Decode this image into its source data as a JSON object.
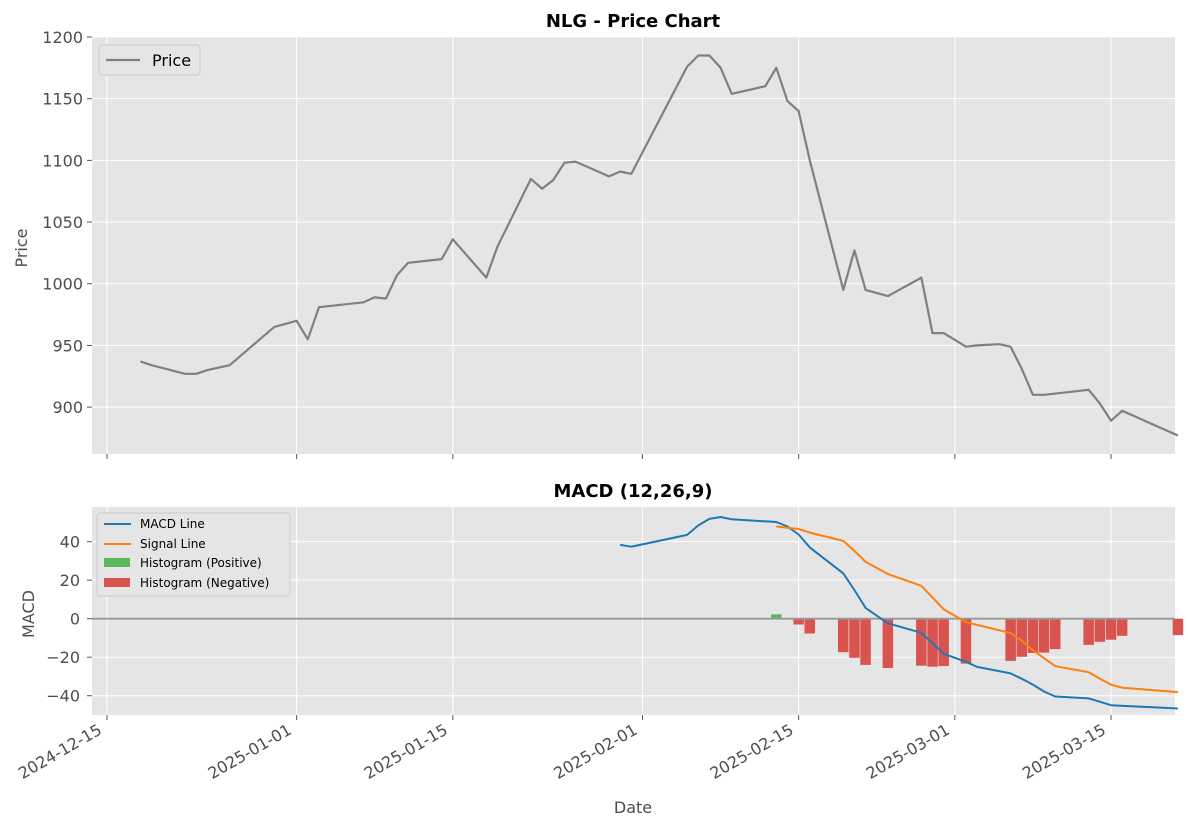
{
  "chart_data": [
    {
      "type": "line",
      "title": "NLG - Price Chart",
      "xlabel": "",
      "ylabel": "Price",
      "ylim": [
        862,
        1200
      ],
      "yticks": [
        "900",
        "950",
        "1000",
        "1050",
        "1100",
        "1150",
        "1200"
      ],
      "xticks": [
        "2024-12-15",
        "2025-01-01",
        "2025-01-15",
        "2025-02-01",
        "2025-02-15",
        "2025-03-01",
        "2025-03-15"
      ],
      "grid": true,
      "legend": "top-left",
      "series": [
        {
          "name": "Price",
          "color": "#808080",
          "points": [
            [
              "2024-12-18",
              937
            ],
            [
              "2024-12-19",
              934
            ],
            [
              "2024-12-22",
              927
            ],
            [
              "2024-12-23",
              927
            ],
            [
              "2024-12-24",
              930
            ],
            [
              "2024-12-26",
              934
            ],
            [
              "2024-12-30",
              965
            ],
            [
              "2025-01-01",
              970
            ],
            [
              "2025-01-02",
              955
            ],
            [
              "2025-01-03",
              981
            ],
            [
              "2025-01-07",
              985
            ],
            [
              "2025-01-08",
              989
            ],
            [
              "2025-01-09",
              988
            ],
            [
              "2025-01-10",
              1007
            ],
            [
              "2025-01-11",
              1017
            ],
            [
              "2025-01-14",
              1020
            ],
            [
              "2025-01-15",
              1036
            ],
            [
              "2025-01-18",
              1005
            ],
            [
              "2025-01-19",
              1030
            ],
            [
              "2025-01-22",
              1085
            ],
            [
              "2025-01-23",
              1077
            ],
            [
              "2025-01-24",
              1084
            ],
            [
              "2025-01-25",
              1098
            ],
            [
              "2025-01-26",
              1099
            ],
            [
              "2025-01-29",
              1087
            ],
            [
              "2025-01-30",
              1091
            ],
            [
              "2025-01-31",
              1089
            ],
            [
              "2025-02-05",
              1176
            ],
            [
              "2025-02-06",
              1185
            ],
            [
              "2025-02-07",
              1185
            ],
            [
              "2025-02-08",
              1175
            ],
            [
              "2025-02-09",
              1154
            ],
            [
              "2025-02-12",
              1160
            ],
            [
              "2025-02-13",
              1175
            ],
            [
              "2025-02-14",
              1148
            ],
            [
              "2025-02-15",
              1140
            ],
            [
              "2025-02-16",
              1100
            ],
            [
              "2025-02-19",
              995
            ],
            [
              "2025-02-20",
              1027
            ],
            [
              "2025-02-21",
              995
            ],
            [
              "2025-02-23",
              990
            ],
            [
              "2025-02-26",
              1005
            ],
            [
              "2025-02-27",
              960
            ],
            [
              "2025-02-28",
              960
            ],
            [
              "2025-03-02",
              949
            ],
            [
              "2025-03-03",
              950
            ],
            [
              "2025-03-05",
              951
            ],
            [
              "2025-03-06",
              949
            ],
            [
              "2025-03-07",
              931
            ],
            [
              "2025-03-08",
              910
            ],
            [
              "2025-03-09",
              910
            ],
            [
              "2025-03-13",
              914
            ],
            [
              "2025-03-14",
              903
            ],
            [
              "2025-03-15",
              889
            ],
            [
              "2025-03-16",
              897
            ],
            [
              "2025-03-21",
              877
            ]
          ]
        }
      ]
    },
    {
      "type": "line",
      "title": "MACD (12,26,9)",
      "xlabel": "Date",
      "ylabel": "MACD",
      "ylim": [
        -50,
        58
      ],
      "yticks": [
        "−40",
        "−20",
        "0",
        "20",
        "40"
      ],
      "xticks": [
        "2024-12-15",
        "2025-01-01",
        "2025-01-15",
        "2025-02-01",
        "2025-02-15",
        "2025-03-01",
        "2025-03-15"
      ],
      "grid": true,
      "legend": "top-left",
      "series": [
        {
          "name": "MACD Line",
          "color": "#1f77b4",
          "points": [
            [
              "2025-01-30",
              38.3
            ],
            [
              "2025-01-31",
              37.4
            ],
            [
              "2025-02-05",
              43.5
            ],
            [
              "2025-02-06",
              48.4
            ],
            [
              "2025-02-07",
              51.8
            ],
            [
              "2025-02-08",
              52.8
            ],
            [
              "2025-02-09",
              51.6
            ],
            [
              "2025-02-13",
              50.2
            ],
            [
              "2025-02-14",
              47.9
            ],
            [
              "2025-02-15",
              43.7
            ],
            [
              "2025-02-16",
              37.0
            ],
            [
              "2025-02-19",
              23.5
            ],
            [
              "2025-02-20",
              14.9
            ],
            [
              "2025-02-21",
              5.6
            ],
            [
              "2025-02-23",
              -2.4
            ],
            [
              "2025-02-26",
              -7.3
            ],
            [
              "2025-02-27",
              -12.7
            ],
            [
              "2025-02-28",
              -18.2
            ],
            [
              "2025-03-02",
              -22.4
            ],
            [
              "2025-03-03",
              -25.0
            ],
            [
              "2025-03-06",
              -28.4
            ],
            [
              "2025-03-07",
              -31.2
            ],
            [
              "2025-03-08",
              -34.2
            ],
            [
              "2025-03-09",
              -37.8
            ],
            [
              "2025-03-10",
              -40.4
            ],
            [
              "2025-03-13",
              -41.4
            ],
            [
              "2025-03-14",
              -43.1
            ],
            [
              "2025-03-15",
              -44.9
            ],
            [
              "2025-03-21",
              -46.6
            ]
          ]
        },
        {
          "name": "Signal Line",
          "color": "#ff7f0e",
          "points": [
            [
              "2025-02-13",
              47.9
            ],
            [
              "2025-02-15",
              46.6
            ],
            [
              "2025-02-16",
              44.7
            ],
            [
              "2025-02-19",
              40.4
            ],
            [
              "2025-02-20",
              35.2
            ],
            [
              "2025-02-21",
              29.5
            ],
            [
              "2025-02-23",
              23.2
            ],
            [
              "2025-02-26",
              17.1
            ],
            [
              "2025-02-28",
              4.9
            ],
            [
              "2025-03-02",
              -1.8
            ],
            [
              "2025-03-06",
              -7.4
            ],
            [
              "2025-03-07",
              -11.4
            ],
            [
              "2025-03-08",
              -16.4
            ],
            [
              "2025-03-10",
              -24.6
            ],
            [
              "2025-03-13",
              -27.8
            ],
            [
              "2025-03-14",
              -31.1
            ],
            [
              "2025-03-15",
              -34.2
            ],
            [
              "2025-03-16",
              -35.8
            ],
            [
              "2025-03-21",
              -38.1
            ]
          ]
        },
        {
          "name": "Histogram (Positive)",
          "type": "bar",
          "color": "#5cb85c",
          "points": [
            [
              "2025-02-13",
              2.3
            ]
          ]
        },
        {
          "name": "Histogram (Negative)",
          "type": "bar",
          "color": "#d9534f",
          "points": [
            [
              "2025-02-15",
              -3.0
            ],
            [
              "2025-02-16",
              -7.7
            ],
            [
              "2025-02-19",
              -17.4
            ],
            [
              "2025-02-20",
              -20.3
            ],
            [
              "2025-02-21",
              -24.0
            ],
            [
              "2025-02-23",
              -25.6
            ],
            [
              "2025-02-26",
              -24.4
            ],
            [
              "2025-02-27",
              -24.9
            ],
            [
              "2025-02-28",
              -24.6
            ],
            [
              "2025-03-02",
              -23.3
            ],
            [
              "2025-03-03",
              0
            ],
            [
              "2025-03-06",
              -21.9
            ],
            [
              "2025-03-07",
              -19.8
            ],
            [
              "2025-03-08",
              -17.8
            ],
            [
              "2025-03-09",
              -17.6
            ],
            [
              "2025-03-10",
              -15.8
            ],
            [
              "2025-03-13",
              -13.6
            ],
            [
              "2025-03-14",
              -12.0
            ],
            [
              "2025-03-15",
              -10.9
            ],
            [
              "2025-03-16",
              -8.9
            ],
            [
              "2025-03-21",
              -8.5
            ]
          ]
        }
      ]
    }
  ]
}
